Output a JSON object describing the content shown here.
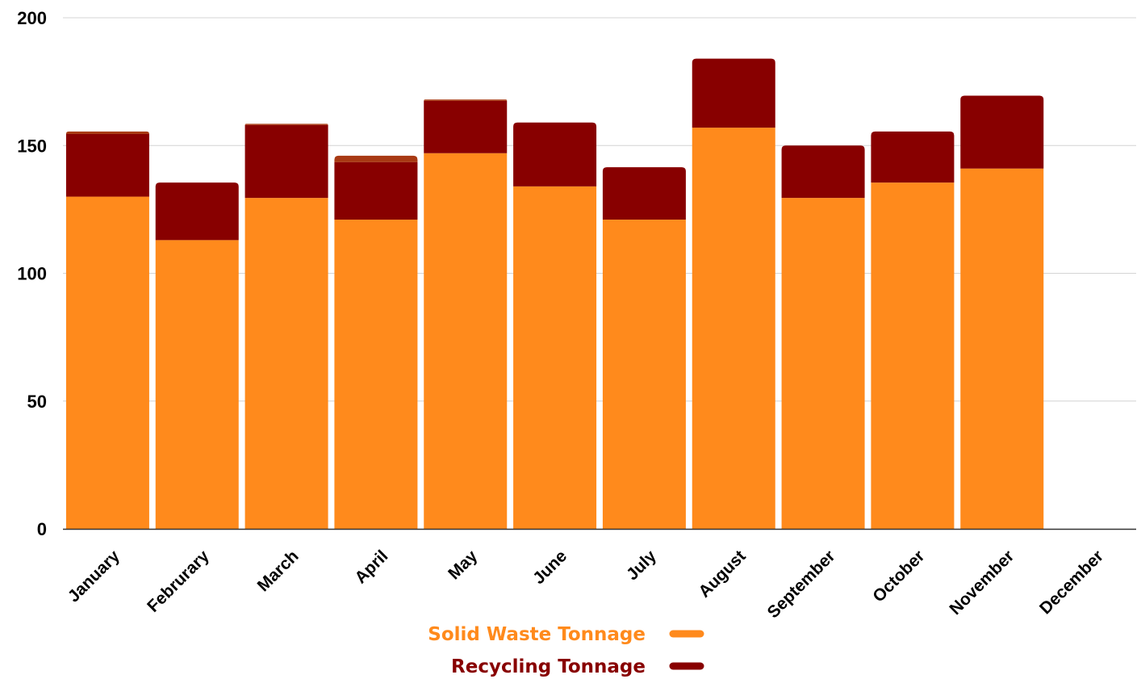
{
  "chart_data": {
    "type": "bar",
    "stacked": true,
    "categories": [
      "January",
      "Februrary",
      "March",
      "April",
      "May",
      "June",
      "July",
      "August",
      "September",
      "October",
      "November",
      "December"
    ],
    "series": [
      {
        "name": "Solid Waste Tonnage",
        "color": "#ff8a1c",
        "values": [
          130,
          113,
          129.5,
          121,
          147,
          134,
          121,
          157,
          129.5,
          135.5,
          141,
          0
        ]
      },
      {
        "name": "Recycling Tonnage",
        "color": "#880000",
        "values": [
          24.5,
          22.5,
          28.5,
          22.5,
          20.5,
          25,
          20.5,
          27,
          20.5,
          20,
          28.5,
          0
        ]
      },
      {
        "name": "",
        "color": "#a83a14",
        "values": [
          1,
          0,
          0.5,
          2.5,
          0.5,
          0,
          0,
          0,
          0,
          0,
          0,
          0
        ]
      }
    ],
    "ylim": [
      0,
      200
    ],
    "yticks": [
      "0",
      "50",
      "100",
      "150",
      "200"
    ],
    "ytick_values": [
      0,
      50,
      100,
      150,
      200
    ],
    "grid": true,
    "legend": {
      "position": "bottom",
      "items": [
        {
          "label": "Solid Waste Tonnage",
          "color": "#ff8a1c"
        },
        {
          "label": "Recycling Tonnage",
          "color": "#880000"
        }
      ]
    },
    "title": "",
    "xlabel": "",
    "ylabel": ""
  }
}
